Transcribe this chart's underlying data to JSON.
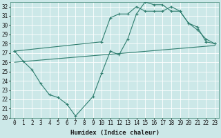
{
  "xlabel": "Humidex (Indice chaleur)",
  "background_color": "#cce8e8",
  "grid_color": "#ffffff",
  "line_color": "#2e7d6e",
  "xlim": [
    -0.5,
    23.5
  ],
  "ylim": [
    20,
    32.5
  ],
  "xticks": [
    0,
    1,
    2,
    3,
    4,
    5,
    6,
    7,
    8,
    9,
    10,
    11,
    12,
    13,
    14,
    15,
    16,
    17,
    18,
    19,
    20,
    21,
    22,
    23
  ],
  "yticks": [
    20,
    21,
    22,
    23,
    24,
    25,
    26,
    27,
    28,
    29,
    30,
    31,
    32
  ],
  "line1_x": [
    0,
    1,
    2,
    3,
    4,
    5,
    6,
    7,
    9,
    10,
    11,
    12,
    13,
    14,
    15,
    16,
    17,
    18,
    19,
    20,
    21,
    22,
    23
  ],
  "line1_y": [
    27.2,
    26.1,
    25.2,
    23.7,
    22.5,
    22.2,
    21.5,
    20.2,
    22.3,
    24.8,
    27.2,
    26.8,
    28.5,
    31.2,
    32.5,
    32.2,
    32.2,
    31.5,
    31.5,
    30.2,
    29.8,
    28.2,
    28.0
  ],
  "line2_x": [
    0,
    10,
    11,
    12,
    13,
    14,
    15,
    16,
    17,
    18,
    19,
    20,
    21,
    22,
    23
  ],
  "line2_y": [
    27.2,
    28.2,
    30.8,
    31.2,
    31.2,
    32.0,
    31.5,
    31.5,
    31.5,
    32.0,
    31.5,
    30.2,
    29.5,
    28.5,
    28.0
  ],
  "line3_x": [
    0,
    23
  ],
  "line3_y": [
    26.0,
    27.8
  ]
}
